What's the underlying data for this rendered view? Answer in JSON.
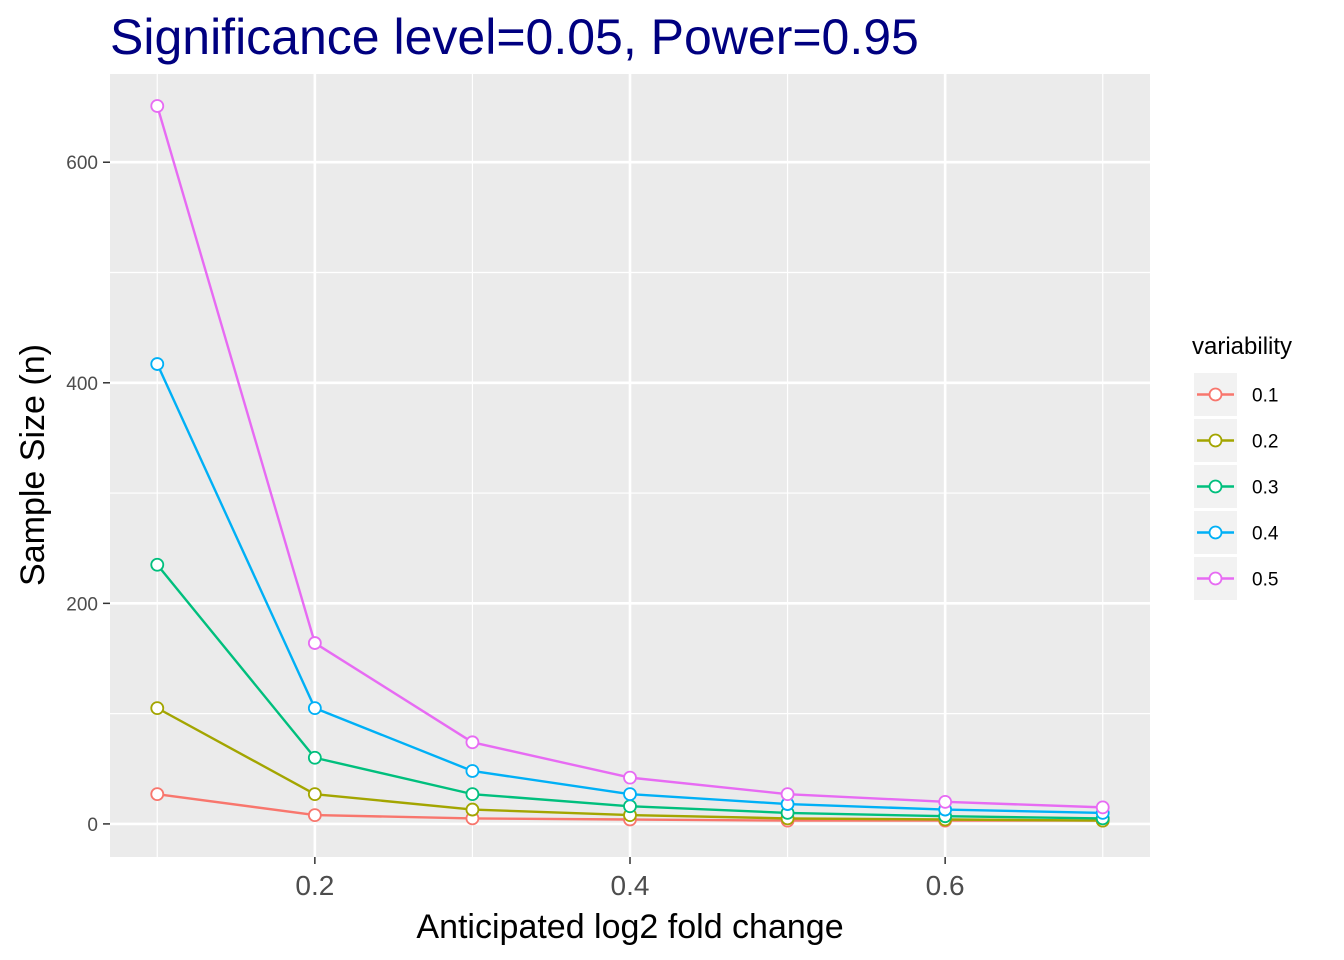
{
  "chart_data": {
    "type": "line",
    "title": "Significance level=0.05, Power=0.95",
    "xlabel": "Anticipated log2 fold change",
    "ylabel": "Sample Size (n)",
    "x": [
      0.1,
      0.2,
      0.3,
      0.4,
      0.5,
      0.6,
      0.7
    ],
    "xlim": [
      0.07,
      0.73
    ],
    "ylim": [
      -30,
      680
    ],
    "x_ticks": [
      0.2,
      0.4,
      0.6
    ],
    "x_tick_labels": [
      "0.2",
      "0.4",
      "0.6"
    ],
    "y_ticks": [
      0,
      200,
      400,
      600
    ],
    "y_tick_labels": [
      "0",
      "200",
      "400",
      "600"
    ],
    "grid": true,
    "legend": {
      "title": "variability",
      "position": "right"
    },
    "series": [
      {
        "name": "0.1",
        "color": "#F8766D",
        "values": [
          27,
          8,
          5,
          4,
          3,
          3,
          3
        ]
      },
      {
        "name": "0.2",
        "color": "#A3A500",
        "values": [
          105,
          27,
          13,
          8,
          5,
          4,
          3
        ]
      },
      {
        "name": "0.3",
        "color": "#00BF7D",
        "values": [
          235,
          60,
          27,
          16,
          10,
          7,
          5
        ]
      },
      {
        "name": "0.4",
        "color": "#00B0F6",
        "values": [
          417,
          105,
          48,
          27,
          18,
          13,
          10
        ]
      },
      {
        "name": "0.5",
        "color": "#E76BF3",
        "values": [
          651,
          164,
          74,
          42,
          27,
          20,
          15
        ]
      }
    ]
  }
}
